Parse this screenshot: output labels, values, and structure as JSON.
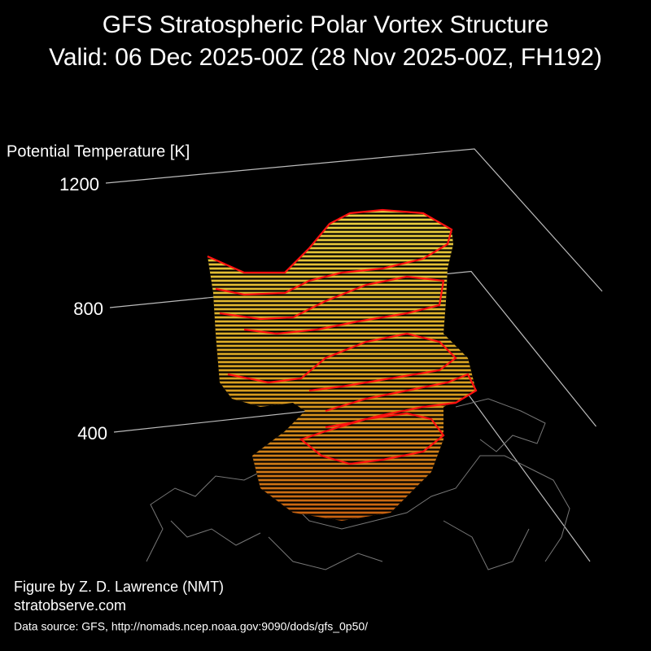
{
  "chart_data": {
    "type": "surface3d",
    "title": "GFS Stratospheric Polar Vortex Structure",
    "subtitle": "Valid: 06 Dec 2025-00Z  (28 Nov 2025-00Z, FH192)",
    "zlabel": "Potential Temperature [K]",
    "zlim": [
      400,
      1200
    ],
    "zticks": [
      400,
      800,
      1200
    ],
    "grid": true,
    "grid_color": "#bbbbbb",
    "credit": "Figure by Z. D. Lawrence (NMT)",
    "website": "stratobserve.com",
    "source": "Data source: GFS, http://nomads.ncep.noaa.gov:9090/dods/gfs_0p50/"
  }
}
